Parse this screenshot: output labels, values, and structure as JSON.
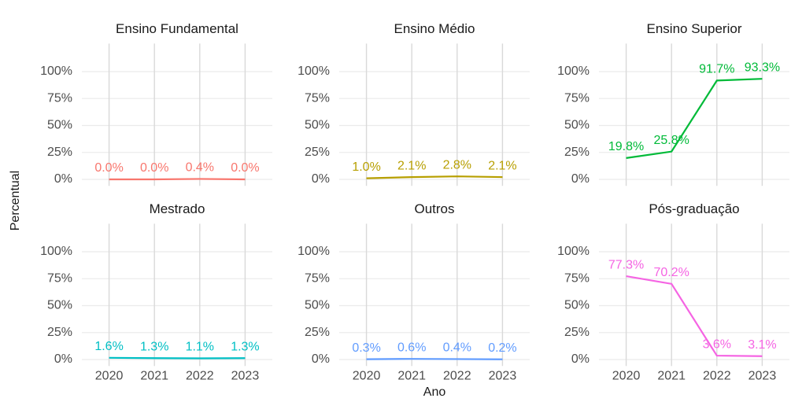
{
  "axis_labels": {
    "x": "Ano",
    "y": "Percentual"
  },
  "chart_data": [
    {
      "type": "line",
      "title": "Ensino Fundamental",
      "categories": [
        "2020",
        "2021",
        "2022",
        "2023"
      ],
      "values": [
        0,
        0,
        0.4,
        0
      ],
      "value_labels": [
        "0.0%",
        "0.0%",
        "0.4%",
        "0.0%"
      ],
      "color": "#F8766D",
      "ylim": [
        -6,
        126
      ],
      "yticks": [
        {
          "value": 0,
          "label": "0%"
        },
        {
          "value": 25,
          "label": "25%"
        },
        {
          "value": 50,
          "label": "50%"
        },
        {
          "value": 75,
          "label": "75%"
        },
        {
          "value": 100,
          "label": "100%"
        }
      ],
      "grid": true
    },
    {
      "type": "line",
      "title": "Ensino Médio",
      "categories": [
        "2020",
        "2021",
        "2022",
        "2023"
      ],
      "values": [
        1.0,
        2.1,
        2.8,
        2.1
      ],
      "value_labels": [
        "1.0%",
        "2.1%",
        "2.8%",
        "2.1%"
      ],
      "color": "#B79F00",
      "ylim": [
        -6,
        126
      ],
      "yticks": [
        {
          "value": 0,
          "label": "0%"
        },
        {
          "value": 25,
          "label": "25%"
        },
        {
          "value": 50,
          "label": "50%"
        },
        {
          "value": 75,
          "label": "75%"
        },
        {
          "value": 100,
          "label": "100%"
        }
      ],
      "grid": true
    },
    {
      "type": "line",
      "title": "Ensino Superior",
      "categories": [
        "2020",
        "2021",
        "2022",
        "2023"
      ],
      "values": [
        19.8,
        25.8,
        91.7,
        93.3
      ],
      "value_labels": [
        "19.8%",
        "25.8%",
        "91.7%",
        "93.3%"
      ],
      "color": "#00BA38",
      "ylim": [
        -6,
        126
      ],
      "yticks": [
        {
          "value": 0,
          "label": "0%"
        },
        {
          "value": 25,
          "label": "25%"
        },
        {
          "value": 50,
          "label": "50%"
        },
        {
          "value": 75,
          "label": "75%"
        },
        {
          "value": 100,
          "label": "100%"
        }
      ],
      "grid": true
    },
    {
      "type": "line",
      "title": "Mestrado",
      "categories": [
        "2020",
        "2021",
        "2022",
        "2023"
      ],
      "values": [
        1.6,
        1.3,
        1.1,
        1.3
      ],
      "value_labels": [
        "1.6%",
        "1.3%",
        "1.1%",
        "1.3%"
      ],
      "color": "#00BFC4",
      "ylim": [
        -6,
        126
      ],
      "yticks": [
        {
          "value": 0,
          "label": "0%"
        },
        {
          "value": 25,
          "label": "25%"
        },
        {
          "value": 50,
          "label": "50%"
        },
        {
          "value": 75,
          "label": "75%"
        },
        {
          "value": 100,
          "label": "100%"
        }
      ],
      "grid": true
    },
    {
      "type": "line",
      "title": "Outros",
      "categories": [
        "2020",
        "2021",
        "2022",
        "2023"
      ],
      "values": [
        0.3,
        0.6,
        0.4,
        0.2
      ],
      "value_labels": [
        "0.3%",
        "0.6%",
        "0.4%",
        "0.2%"
      ],
      "color": "#619CFF",
      "ylim": [
        -6,
        126
      ],
      "yticks": [
        {
          "value": 0,
          "label": "0%"
        },
        {
          "value": 25,
          "label": "25%"
        },
        {
          "value": 50,
          "label": "50%"
        },
        {
          "value": 75,
          "label": "75%"
        },
        {
          "value": 100,
          "label": "100%"
        }
      ],
      "grid": true
    },
    {
      "type": "line",
      "title": "Pós-graduação",
      "categories": [
        "2020",
        "2021",
        "2022",
        "2023"
      ],
      "values": [
        77.3,
        70.2,
        3.6,
        3.1
      ],
      "value_labels": [
        "77.3%",
        "70.2%",
        "3.6%",
        "3.1%"
      ],
      "color": "#F564E3",
      "ylim": [
        -6,
        126
      ],
      "yticks": [
        {
          "value": 0,
          "label": "0%"
        },
        {
          "value": 25,
          "label": "25%"
        },
        {
          "value": 50,
          "label": "50%"
        },
        {
          "value": 75,
          "label": "75%"
        },
        {
          "value": 100,
          "label": "100%"
        }
      ],
      "grid": true
    }
  ]
}
